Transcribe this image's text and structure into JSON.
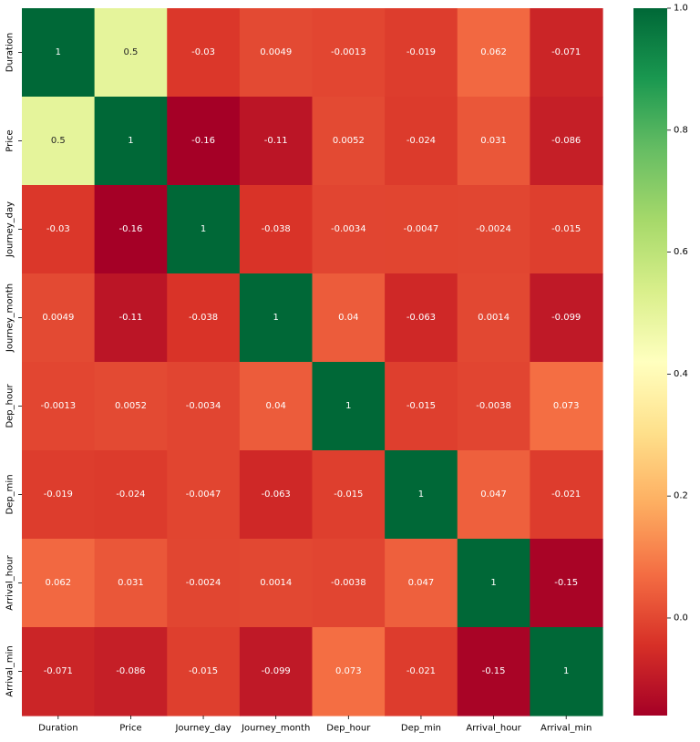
{
  "chart_data": {
    "type": "heatmap",
    "x_categories": [
      "Duration",
      "Price",
      "Journey_day",
      "Journey_month",
      "Dep_hour",
      "Dep_min",
      "Arrival_hour",
      "Arrival_min"
    ],
    "y_categories": [
      "Duration",
      "Price",
      "Journey_day",
      "Journey_month",
      "Dep_hour",
      "Dep_min",
      "Arrival_hour",
      "Arrival_min"
    ],
    "values": [
      [
        1,
        0.5,
        -0.03,
        0.0049,
        -0.0013,
        -0.019,
        0.062,
        -0.071
      ],
      [
        0.5,
        1,
        -0.16,
        -0.11,
        0.0052,
        -0.024,
        0.031,
        -0.086
      ],
      [
        -0.03,
        -0.16,
        1,
        -0.038,
        -0.0034,
        -0.0047,
        -0.0024,
        -0.015
      ],
      [
        0.0049,
        -0.11,
        -0.038,
        1,
        0.04,
        -0.063,
        0.0014,
        -0.099
      ],
      [
        -0.0013,
        0.0052,
        -0.0034,
        0.04,
        1,
        -0.015,
        -0.0038,
        0.073
      ],
      [
        -0.019,
        -0.024,
        -0.0047,
        -0.063,
        -0.015,
        1,
        0.047,
        -0.021
      ],
      [
        0.062,
        0.031,
        -0.0024,
        0.0014,
        -0.0038,
        0.047,
        1,
        -0.15
      ],
      [
        -0.071,
        -0.086,
        -0.015,
        -0.099,
        0.073,
        -0.021,
        -0.15,
        1
      ]
    ],
    "annotations": [
      [
        "1",
        "0.5",
        "-0.03",
        "0.0049",
        "-0.0013",
        "-0.019",
        "0.062",
        "-0.071"
      ],
      [
        "0.5",
        "1",
        "-0.16",
        "-0.11",
        "0.0052",
        "-0.024",
        "0.031",
        "-0.086"
      ],
      [
        "-0.03",
        "-0.16",
        "1",
        "-0.038",
        "-0.0034",
        "-0.0047",
        "-0.0024",
        "-0.015"
      ],
      [
        "0.0049",
        "-0.11",
        "-0.038",
        "1",
        "0.04",
        "-0.063",
        "0.0014",
        "-0.099"
      ],
      [
        "-0.0013",
        "0.0052",
        "-0.0034",
        "0.04",
        "1",
        "-0.015",
        "-0.0038",
        "0.073"
      ],
      [
        "-0.019",
        "-0.024",
        "-0.0047",
        "-0.063",
        "-0.015",
        "1",
        "0.047",
        "-0.021"
      ],
      [
        "0.062",
        "0.031",
        "-0.0024",
        "0.0014",
        "-0.0038",
        "0.047",
        "1",
        "-0.15"
      ],
      [
        "-0.071",
        "-0.086",
        "-0.015",
        "-0.099",
        "0.073",
        "-0.021",
        "-0.15",
        "1"
      ]
    ],
    "colormap": "RdYlGn",
    "vmin": -0.16,
    "vmax": 1.0,
    "colorbar": {
      "ticks": [
        0.0,
        0.2,
        0.4,
        0.6,
        0.8,
        1.0
      ],
      "tick_labels": [
        "0.0",
        "0.2",
        "0.4",
        "0.6",
        "0.8",
        "1.0"
      ],
      "placement": "right"
    },
    "title": "",
    "xlabel": "",
    "ylabel": ""
  }
}
